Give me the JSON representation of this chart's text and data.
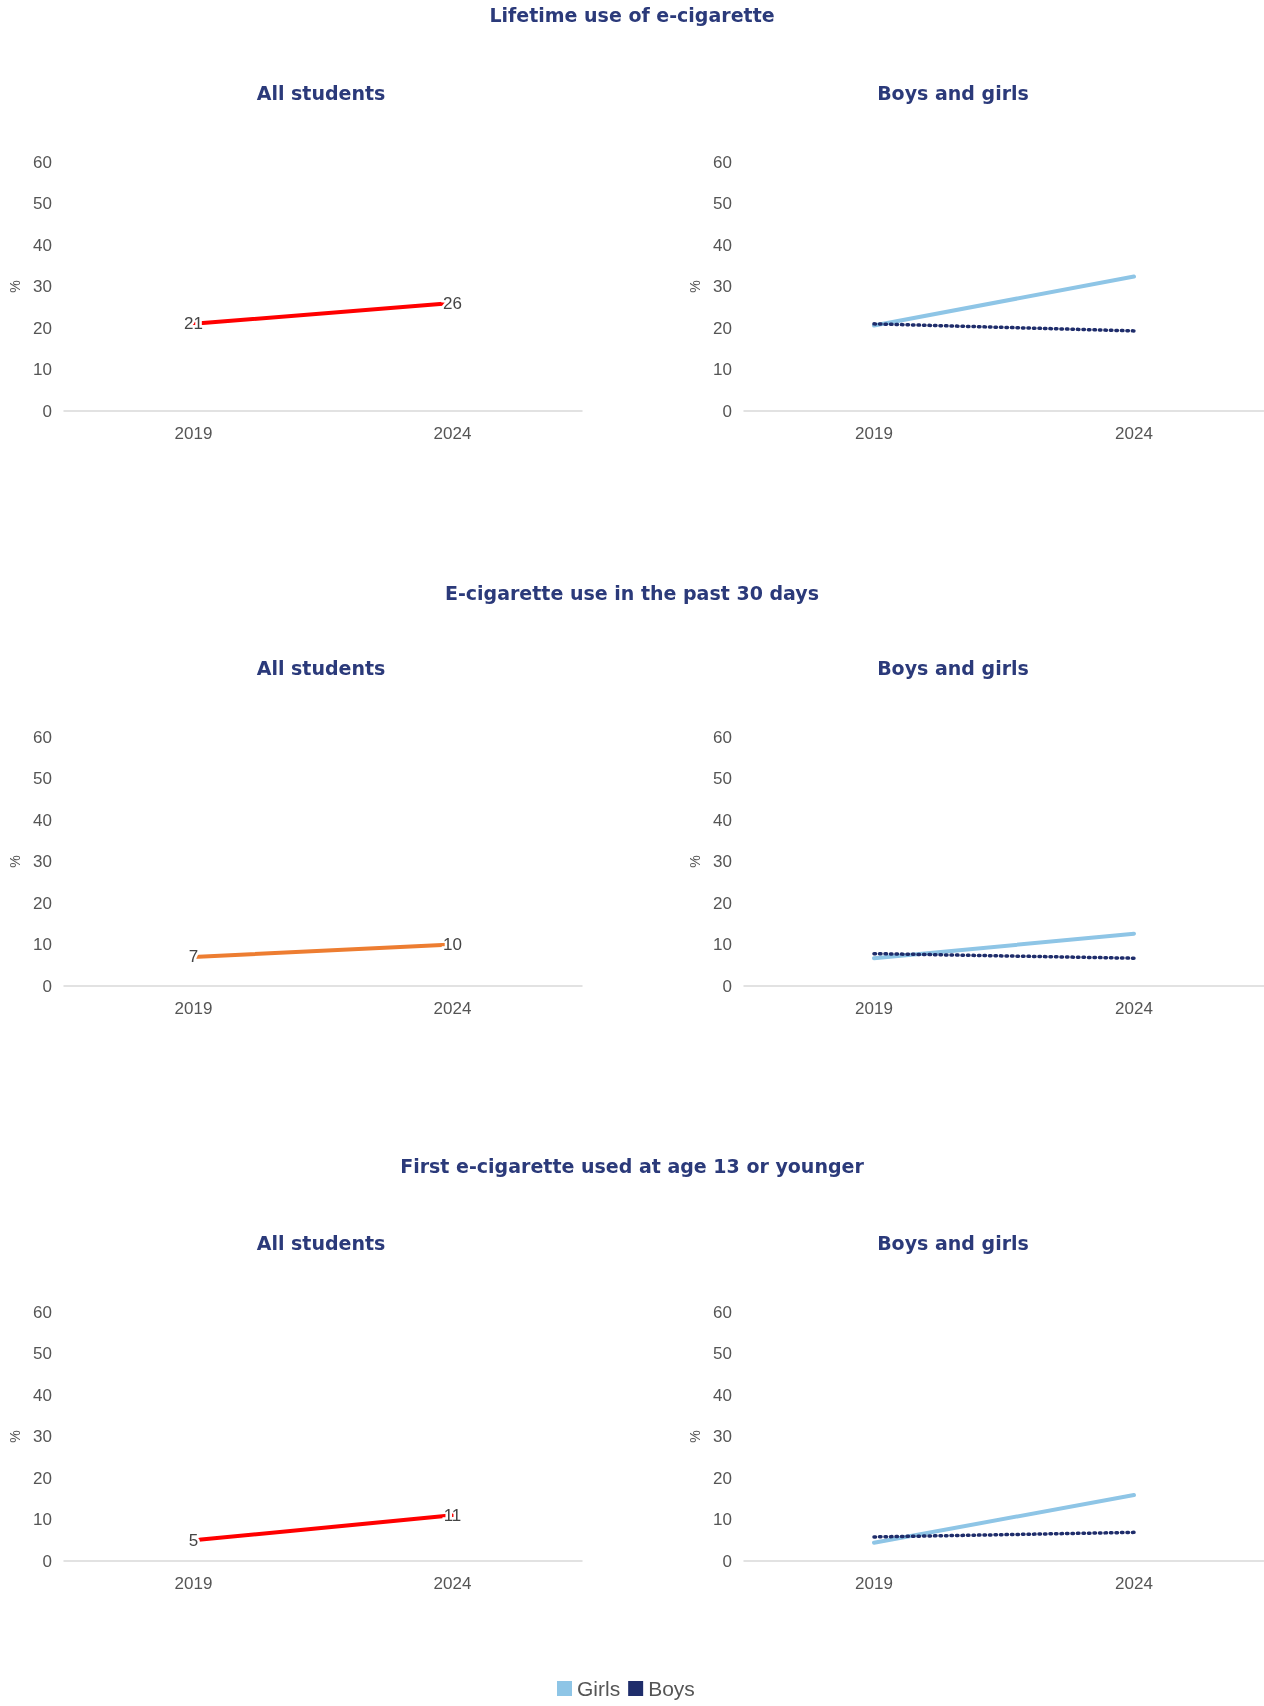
{
  "chart_data": [
    {
      "type": "line",
      "title": "Lifetime use of e-cigarette",
      "subtitle": "All students",
      "ylabel": "%",
      "categories": [
        "2019",
        "2024"
      ],
      "series": [
        {
          "color": "#ff0000",
          "values": [
            21,
            26
          ]
        }
      ],
      "data_labels": true,
      "ylim": [
        0,
        60
      ],
      "yticks": [
        0,
        10,
        20,
        30,
        40,
        50,
        60
      ],
      "grid": false,
      "legend": false,
      "marker": "none",
      "line_style": "solid"
    },
    {
      "type": "line",
      "subtitle": "Boys and girls",
      "ylabel": "%",
      "categories": [
        "2019",
        "2024"
      ],
      "series": [
        {
          "color": "#8ec5e6",
          "values": [
            20.6,
            32.4
          ],
          "line_style": "solid"
        },
        {
          "color": "#1f2d6b",
          "values": [
            21,
            19.3
          ],
          "line_style": "dotted"
        }
      ],
      "ylim": [
        0,
        60
      ],
      "yticks": [
        0,
        10,
        20,
        30,
        40,
        50,
        60
      ],
      "grid": false,
      "legend": false,
      "marker": "none"
    },
    {
      "type": "line",
      "title": "E-cigarette use in the past 30 days",
      "subtitle": "All students",
      "ylabel": "%",
      "categories": [
        "2019",
        "2024"
      ],
      "series": [
        {
          "color": "#ed7d31",
          "values": [
            7,
            10
          ]
        }
      ],
      "data_labels": true,
      "ylim": [
        0,
        60
      ],
      "yticks": [
        0,
        10,
        20,
        30,
        40,
        50,
        60
      ],
      "grid": false,
      "legend": false,
      "marker": "none",
      "line_style": "solid"
    },
    {
      "type": "line",
      "subtitle": "Boys and girls",
      "ylabel": "%",
      "categories": [
        "2019",
        "2024"
      ],
      "series": [
        {
          "color": "#8ec5e6",
          "values": [
            6.7,
            12.6
          ],
          "line_style": "solid"
        },
        {
          "color": "#1f2d6b",
          "values": [
            7.8,
            6.7
          ],
          "line_style": "dotted"
        }
      ],
      "ylim": [
        0,
        60
      ],
      "yticks": [
        0,
        10,
        20,
        30,
        40,
        50,
        60
      ],
      "grid": false,
      "legend": false,
      "marker": "none"
    },
    {
      "type": "line",
      "title": "First e-cigarette used at age 13 or younger",
      "subtitle": "All students",
      "ylabel": "%",
      "categories": [
        "2019",
        "2024"
      ],
      "series": [
        {
          "color": "#ff0000",
          "values": [
            5,
            11
          ]
        }
      ],
      "data_labels": true,
      "ylim": [
        0,
        60
      ],
      "yticks": [
        0,
        10,
        20,
        30,
        40,
        50,
        60
      ],
      "grid": false,
      "legend": false,
      "marker": "none",
      "line_style": "solid"
    },
    {
      "type": "line",
      "subtitle": "Boys and girls",
      "ylabel": "%",
      "categories": [
        "2019",
        "2024"
      ],
      "series": [
        {
          "name": "Girls",
          "color": "#8ec5e6",
          "values": [
            4.4,
            15.9
          ],
          "line_style": "solid"
        },
        {
          "name": "Boys",
          "color": "#1f2d6b",
          "values": [
            5.8,
            6.9
          ],
          "line_style": "dotted"
        }
      ],
      "ylim": [
        0,
        60
      ],
      "yticks": [
        0,
        10,
        20,
        30,
        40,
        50,
        60
      ],
      "grid": false,
      "legend": "bottom",
      "marker": "none"
    }
  ]
}
